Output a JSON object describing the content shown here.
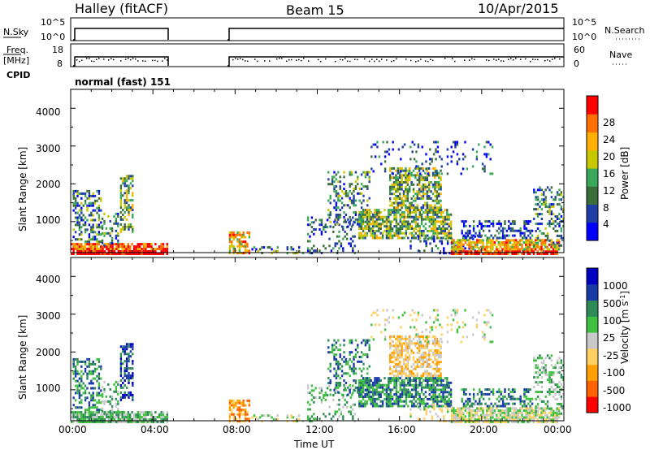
{
  "header": {
    "left_title": "Halley (fitACF)",
    "center_title": "Beam 15",
    "date": "10/Apr/2015"
  },
  "top_panels": {
    "nsky_label": "N.Sky",
    "nsky_ticks": [
      "10^5",
      "10^0"
    ],
    "nsearch_label": "N.Search",
    "nsearch_ticks": [
      "10^5",
      "10^0"
    ],
    "freq_label": "Freq.",
    "freq_unit": "[MHz]",
    "freq_ticks": [
      "18",
      "8"
    ],
    "nave_label": "Nave",
    "nave_ticks": [
      "60",
      "0"
    ],
    "cpid_label": "CPID",
    "cpid_value": "normal (fast) 151"
  },
  "colors": {
    "power_scale": [
      "#0000ff",
      "#1f3fa6",
      "#3a6f3a",
      "#3aa85a",
      "#c8c800",
      "#ffb000",
      "#ff7000",
      "#ff0000"
    ],
    "velocity_scale": [
      "#ff0000",
      "#ff6000",
      "#ffa000",
      "#ffd060",
      "#c8c8c8",
      "#40c040",
      "#2e8b57",
      "#1a3aa8",
      "#0000c0"
    ]
  },
  "chart_data": [
    {
      "type": "heatmap",
      "title": "",
      "xlabel": "",
      "ylabel": "Slant Range [km]",
      "x_ticks": [
        "00:00",
        "04:00",
        "08:00",
        "12:00",
        "16:00",
        "20:00",
        "00:00"
      ],
      "y_ticks": [
        "1000",
        "2000",
        "3000",
        "4000"
      ],
      "ylim": [
        180,
        4500
      ],
      "colorbar_label": "Power [dB]",
      "colorbar_ticks": [
        "4",
        "8",
        "12",
        "16",
        "20",
        "24",
        "28"
      ],
      "colorbar_range": [
        0,
        30
      ]
    },
    {
      "type": "heatmap",
      "title": "",
      "xlabel": "Time UT",
      "ylabel": "Slant Range [km]",
      "x_ticks": [
        "00:00",
        "04:00",
        "08:00",
        "12:00",
        "16:00",
        "20:00",
        "00:00"
      ],
      "y_ticks": [
        "1000",
        "2000",
        "3000",
        "4000"
      ],
      "ylim": [
        180,
        4500
      ],
      "colorbar_label": "Velocity [m s^-1]",
      "colorbar_ticks": [
        "1000",
        "500",
        "100",
        "25",
        "-25",
        "-100",
        "-500",
        "-1000"
      ]
    }
  ]
}
